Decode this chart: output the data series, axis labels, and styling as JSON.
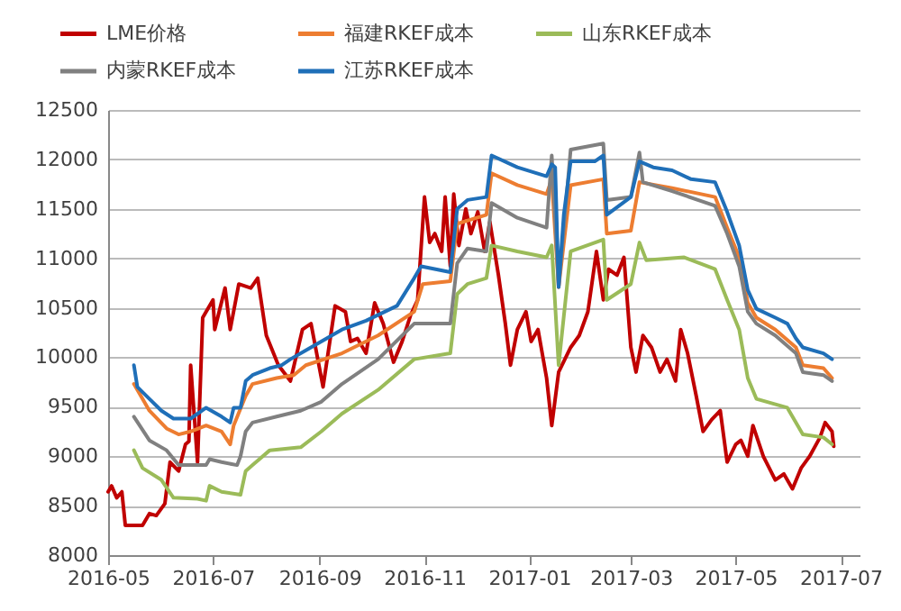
{
  "chart_data": {
    "type": "line",
    "xlim": [
      "2016-05-01",
      "2017-07-12"
    ],
    "xticks": [
      "2016-05",
      "2016-07",
      "2016-09",
      "2016-11",
      "2017-01",
      "2017-03",
      "2017-05",
      "2017-07"
    ],
    "ylim": [
      8000,
      12500
    ],
    "yticks": [
      8000,
      8500,
      9000,
      9500,
      10000,
      10500,
      11000,
      11500,
      12000,
      12500
    ],
    "grid": "y",
    "legend": "top",
    "line_style": "solid",
    "marker": "none",
    "series": [
      {
        "name": "LME价格",
        "color": "#c00000",
        "x": [
          "2016-05-01",
          "2016-05-03",
          "2016-05-06",
          "2016-05-09",
          "2016-05-11",
          "2016-05-21",
          "2016-05-25",
          "2016-05-29",
          "2016-06-03",
          "2016-06-06",
          "2016-06-11",
          "2016-06-15",
          "2016-06-17",
          "2016-06-18",
          "2016-06-22",
          "2016-06-25",
          "2016-07-01",
          "2016-07-02",
          "2016-07-08",
          "2016-07-11",
          "2016-07-16",
          "2016-07-23",
          "2016-07-27",
          "2016-08-01",
          "2016-08-08",
          "2016-08-15",
          "2016-08-22",
          "2016-08-27",
          "2016-09-03",
          "2016-09-10",
          "2016-09-16",
          "2016-09-19",
          "2016-09-23",
          "2016-09-28",
          "2016-10-03",
          "2016-10-08",
          "2016-10-14",
          "2016-10-19",
          "2016-10-24",
          "2016-10-28",
          "2016-11-01",
          "2016-11-04",
          "2016-11-07",
          "2016-11-11",
          "2016-11-13",
          "2016-11-16",
          "2016-11-18",
          "2016-11-21",
          "2016-11-25",
          "2016-11-28",
          "2016-12-02",
          "2016-12-06",
          "2016-12-09",
          "2016-12-14",
          "2016-12-18",
          "2016-12-21",
          "2016-12-25",
          "2016-12-30",
          "2017-01-02",
          "2017-01-06",
          "2017-01-11",
          "2017-01-14",
          "2017-01-18",
          "2017-01-25",
          "2017-01-30",
          "2017-02-04",
          "2017-02-09",
          "2017-02-13",
          "2017-02-16",
          "2017-02-21",
          "2017-02-25",
          "2017-03-01",
          "2017-03-04",
          "2017-03-08",
          "2017-03-13",
          "2017-03-18",
          "2017-03-22",
          "2017-03-27",
          "2017-03-30",
          "2017-04-03",
          "2017-04-08",
          "2017-04-12",
          "2017-04-17",
          "2017-04-22",
          "2017-04-26",
          "2017-05-01",
          "2017-05-04",
          "2017-05-08",
          "2017-05-11",
          "2017-05-17",
          "2017-05-24",
          "2017-05-29",
          "2017-06-03",
          "2017-06-08",
          "2017-06-13",
          "2017-06-19",
          "2017-06-22",
          "2017-06-26",
          "2017-06-27"
        ],
        "values": [
          8640,
          8700,
          8580,
          8640,
          8300,
          8300,
          8420,
          8400,
          8520,
          8940,
          8850,
          9120,
          9150,
          9920,
          8940,
          10400,
          10580,
          10280,
          10700,
          10280,
          10740,
          10700,
          10800,
          10220,
          9920,
          9760,
          10280,
          10340,
          9700,
          10520,
          10460,
          10160,
          10190,
          10040,
          10550,
          10340,
          9950,
          10160,
          10430,
          10580,
          11620,
          11160,
          11250,
          11070,
          11620,
          10920,
          11650,
          11130,
          11500,
          11250,
          11470,
          11070,
          11370,
          10830,
          10340,
          9920,
          10280,
          10460,
          10160,
          10280,
          9790,
          9310,
          9850,
          10100,
          10220,
          10460,
          11070,
          10580,
          10890,
          10830,
          11010,
          10100,
          9850,
          10220,
          10100,
          9850,
          9980,
          9760,
          10280,
          10040,
          9610,
          9250,
          9370,
          9460,
          8940,
          9120,
          9160,
          9000,
          9310,
          9000,
          8760,
          8820,
          8670,
          8880,
          9000,
          9190,
          9340,
          9250,
          9100
        ]
      },
      {
        "name": "福建RKEF成本",
        "color": "#ed7d31",
        "x": [
          "2016-05-16",
          "2016-05-25",
          "2016-06-04",
          "2016-06-11",
          "2016-06-18",
          "2016-06-27",
          "2016-07-06",
          "2016-07-11",
          "2016-07-13",
          "2016-07-20",
          "2016-07-24",
          "2016-08-07",
          "2016-08-17",
          "2016-08-24",
          "2016-09-14",
          "2016-10-05",
          "2016-10-26",
          "2016-10-31",
          "2016-11-16",
          "2016-11-20",
          "2016-12-07",
          "2016-12-10",
          "2016-12-25",
          "2017-01-11",
          "2017-01-14",
          "2017-01-18",
          "2017-01-25",
          "2017-02-13",
          "2017-02-15",
          "2017-03-01",
          "2017-03-06",
          "2017-03-25",
          "2017-04-19",
          "2017-04-26",
          "2017-05-03",
          "2017-05-08",
          "2017-05-13",
          "2017-05-24",
          "2017-06-05",
          "2017-06-09",
          "2017-06-21",
          "2017-06-26"
        ],
        "values": [
          9730,
          9460,
          9280,
          9220,
          9250,
          9310,
          9250,
          9120,
          9310,
          9610,
          9730,
          9790,
          9820,
          9920,
          10040,
          10220,
          10460,
          10740,
          10770,
          11350,
          11440,
          11860,
          11740,
          11650,
          11800,
          10710,
          11740,
          11800,
          11250,
          11280,
          11770,
          11710,
          11620,
          11310,
          11010,
          10550,
          10400,
          10280,
          10100,
          9920,
          9890,
          9790
        ]
      },
      {
        "name": "山东RKEF成本",
        "color": "#9bbb59",
        "x": [
          "2016-05-16",
          "2016-05-21",
          "2016-06-01",
          "2016-06-08",
          "2016-06-22",
          "2016-06-27",
          "2016-06-29",
          "2016-07-06",
          "2016-07-17",
          "2016-07-20",
          "2016-07-24",
          "2016-08-03",
          "2016-08-21",
          "2016-09-02",
          "2016-09-14",
          "2016-10-05",
          "2016-10-26",
          "2016-11-16",
          "2016-11-20",
          "2016-11-26",
          "2016-12-07",
          "2016-12-10",
          "2016-12-25",
          "2017-01-11",
          "2017-01-14",
          "2017-01-18",
          "2017-01-25",
          "2017-02-13",
          "2017-02-15",
          "2017-03-01",
          "2017-03-06",
          "2017-03-10",
          "2017-04-01",
          "2017-04-19",
          "2017-04-26",
          "2017-05-03",
          "2017-05-08",
          "2017-05-13",
          "2017-05-31",
          "2017-06-09",
          "2017-06-21",
          "2017-06-26"
        ],
        "values": [
          9060,
          8880,
          8760,
          8580,
          8570,
          8550,
          8700,
          8640,
          8610,
          8850,
          8910,
          9060,
          9090,
          9250,
          9430,
          9670,
          9980,
          10040,
          10640,
          10740,
          10800,
          11130,
          11070,
          11010,
          11130,
          9920,
          11070,
          11190,
          10580,
          10740,
          11160,
          10980,
          11010,
          10890,
          10580,
          10280,
          9790,
          9580,
          9490,
          9220,
          9190,
          9120
        ]
      },
      {
        "name": "内蒙RKEF成本",
        "color": "#808080",
        "x": [
          "2016-05-16",
          "2016-05-25",
          "2016-06-04",
          "2016-06-11",
          "2016-06-27",
          "2016-06-29",
          "2016-07-06",
          "2016-07-15",
          "2016-07-17",
          "2016-07-20",
          "2016-07-24",
          "2016-08-07",
          "2016-08-21",
          "2016-09-02",
          "2016-09-14",
          "2016-10-05",
          "2016-10-26",
          "2016-11-16",
          "2016-11-20",
          "2016-11-26",
          "2016-12-07",
          "2016-12-10",
          "2016-12-25",
          "2017-01-11",
          "2017-01-14",
          "2017-01-18",
          "2017-01-25",
          "2017-02-13",
          "2017-02-15",
          "2017-03-01",
          "2017-03-06",
          "2017-03-08",
          "2017-03-25",
          "2017-04-19",
          "2017-04-26",
          "2017-05-03",
          "2017-05-08",
          "2017-05-13",
          "2017-05-24",
          "2017-06-05",
          "2017-06-09",
          "2017-06-21",
          "2017-06-26"
        ],
        "values": [
          9400,
          9160,
          9060,
          8910,
          8910,
          8970,
          8940,
          8910,
          9000,
          9250,
          9340,
          9400,
          9460,
          9550,
          9730,
          9980,
          10340,
          10340,
          10950,
          11100,
          11070,
          11560,
          11410,
          11310,
          12040,
          10710,
          12100,
          12160,
          11590,
          11620,
          12070,
          11770,
          11680,
          11530,
          11250,
          10920,
          10460,
          10340,
          10220,
          10040,
          9850,
          9820,
          9760
        ]
      },
      {
        "name": "江苏RKEF成本",
        "color": "#1f6fb8",
        "x": [
          "2016-05-16",
          "2016-05-18",
          "2016-05-25",
          "2016-06-01",
          "2016-06-08",
          "2016-06-18",
          "2016-06-27",
          "2016-07-06",
          "2016-07-11",
          "2016-07-13",
          "2016-07-17",
          "2016-07-20",
          "2016-07-24",
          "2016-08-03",
          "2016-08-10",
          "2016-08-15",
          "2016-08-24",
          "2016-09-14",
          "2016-09-28",
          "2016-10-16",
          "2016-10-26",
          "2016-10-30",
          "2016-11-16",
          "2016-11-20",
          "2016-11-26",
          "2016-12-07",
          "2016-12-10",
          "2016-12-25",
          "2017-01-11",
          "2017-01-14",
          "2017-01-16",
          "2017-01-18",
          "2017-01-21",
          "2017-01-25",
          "2017-02-08",
          "2017-02-13",
          "2017-02-15",
          "2017-03-01",
          "2017-03-06",
          "2017-03-14",
          "2017-03-25",
          "2017-04-05",
          "2017-04-19",
          "2017-04-26",
          "2017-05-03",
          "2017-05-08",
          "2017-05-13",
          "2017-05-24",
          "2017-05-31",
          "2017-06-05",
          "2017-06-09",
          "2017-06-21",
          "2017-06-26"
        ],
        "values": [
          9920,
          9700,
          9580,
          9460,
          9380,
          9380,
          9490,
          9400,
          9340,
          9490,
          9490,
          9760,
          9820,
          9890,
          9920,
          9980,
          10070,
          10280,
          10370,
          10520,
          10800,
          10920,
          10860,
          11500,
          11590,
          11620,
          12040,
          11920,
          11830,
          11950,
          11920,
          10710,
          11440,
          11980,
          11980,
          12040,
          11440,
          11620,
          11980,
          11920,
          11890,
          11800,
          11770,
          11470,
          11130,
          10680,
          10490,
          10400,
          10340,
          10190,
          10100,
          10040,
          9980
        ]
      }
    ]
  }
}
